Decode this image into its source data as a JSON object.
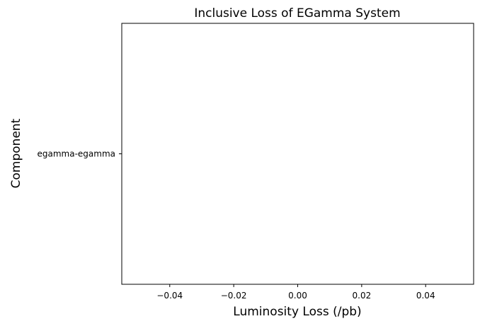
{
  "chart_data": {
    "type": "bar",
    "orientation": "horizontal",
    "title": "Inclusive Loss of EGamma System",
    "xlabel": "Luminosity Loss (/pb)",
    "ylabel": "Component",
    "categories": [
      "egamma-egamma"
    ],
    "values": [
      0
    ],
    "xlim": [
      -0.055,
      0.055
    ],
    "xticks": [
      -0.04,
      -0.02,
      0.0,
      0.02,
      0.04
    ],
    "xtick_labels": [
      "−0.04",
      "−0.02",
      "0.00",
      "0.02",
      "0.04"
    ],
    "grid": false,
    "colors": {
      "bar": "#1f77b4",
      "frame": "#000000",
      "background": "#ffffff"
    }
  }
}
